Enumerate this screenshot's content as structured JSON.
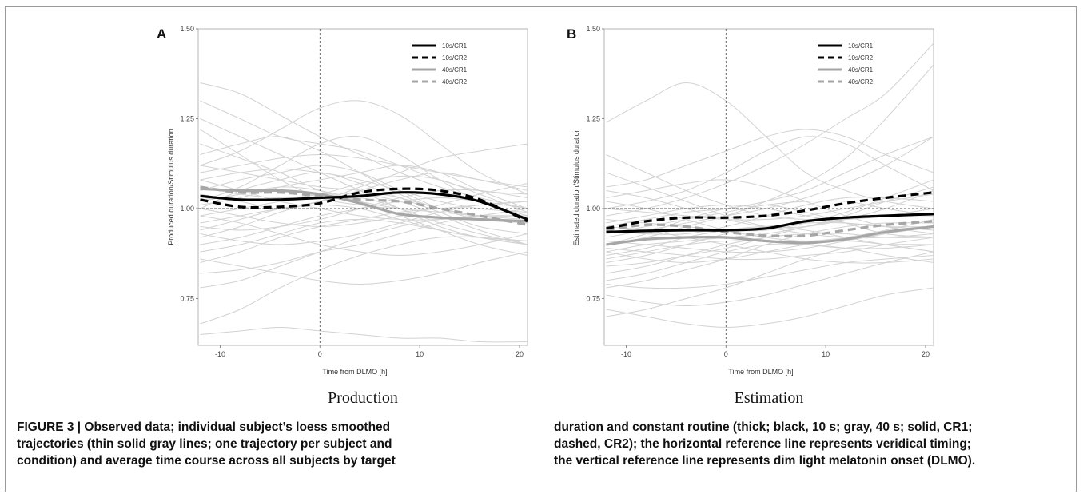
{
  "figure": {
    "caption_left": [
      "FIGURE 3 | Observed data; individual subject’s loess smoothed",
      "trajectories (thin solid gray lines; one trajectory per subject and",
      "condition) and average time course across all subjects by target"
    ],
    "caption_right": [
      "duration and constant routine (thick; black, 10 s; gray, 40 s; solid, CR1;",
      "dashed, CR2); the horizontal reference line represents veridical timing;",
      "the vertical reference line represents dim light melatonin onset (DLMO)."
    ]
  },
  "colors": {
    "black_series": "#000000",
    "gray_series": "#a6a6a6",
    "individual_lines": "#d2d2d2",
    "reference_lines": "#555555"
  },
  "chart_data": [
    {
      "type": "line",
      "panel_letter": "A",
      "subtitle": "Production",
      "xlabel": "Time from DLMO [h]",
      "ylabel": "Produced duration/Stimulus duration",
      "xlim": [
        -12.2,
        20.8
      ],
      "ylim": [
        0.62,
        1.5
      ],
      "x_ticks": [
        "-10",
        "0",
        "10",
        "20"
      ],
      "y_ticks": [
        "0.75",
        "1.00",
        "1.25",
        "1.50"
      ],
      "reference_lines": {
        "horizontal_y": 1.0,
        "vertical_x": 0
      },
      "legend_position": "top-right",
      "x": [
        -12,
        -8,
        -4,
        0,
        4,
        8,
        12,
        16,
        20.8
      ],
      "series": [
        {
          "name": "10s/CR1",
          "color": "black",
          "style": "solid",
          "values": [
            1.035,
            1.025,
            1.025,
            1.03,
            1.035,
            1.045,
            1.04,
            1.02,
            0.97
          ]
        },
        {
          "name": "10s/CR2",
          "color": "black",
          "style": "dashed",
          "values": [
            1.025,
            1.005,
            1.005,
            1.015,
            1.045,
            1.055,
            1.05,
            1.025,
            0.965
          ]
        },
        {
          "name": "40s/CR1",
          "color": "gray",
          "style": "solid",
          "values": [
            1.055,
            1.05,
            1.05,
            1.04,
            1.015,
            0.985,
            0.975,
            0.97,
            0.965
          ]
        },
        {
          "name": "40s/CR2",
          "color": "gray",
          "style": "dashed",
          "values": [
            1.06,
            1.045,
            1.045,
            1.035,
            1.025,
            1.02,
            1.0,
            0.98,
            0.955
          ]
        }
      ],
      "individual_trajectories": [
        [
          1.12,
          1.1,
          1.08,
          1.06,
          1.05,
          1.03,
          1.0,
          0.98,
          0.96
        ],
        [
          0.92,
          0.95,
          0.99,
          1.02,
          1.03,
          1.0,
          0.96,
          0.93,
          0.9
        ],
        [
          1.25,
          1.2,
          1.15,
          1.1,
          1.05,
          1.0,
          0.95,
          0.92,
          0.9
        ],
        [
          0.85,
          0.88,
          0.92,
          0.95,
          0.97,
          0.99,
          1.0,
          1.01,
          1.02
        ],
        [
          1.02,
          1.06,
          1.12,
          1.18,
          1.2,
          1.15,
          1.08,
          1.02,
          0.98
        ],
        [
          0.98,
          0.96,
          0.93,
          0.9,
          0.88,
          0.87,
          0.88,
          0.9,
          0.93
        ],
        [
          1.05,
          1.08,
          1.1,
          1.12,
          1.1,
          1.05,
          1.0,
          0.97,
          0.96
        ],
        [
          0.94,
          0.97,
          1.0,
          1.02,
          1.05,
          1.08,
          1.1,
          1.08,
          1.05
        ],
        [
          0.68,
          0.72,
          0.78,
          0.83,
          0.87,
          0.9,
          0.92,
          0.92,
          0.91
        ],
        [
          1.08,
          1.05,
          1.02,
          1.0,
          0.98,
          0.97,
          0.97,
          0.98,
          1.0
        ],
        [
          1.15,
          1.18,
          1.2,
          1.16,
          1.1,
          1.04,
          1.0,
          0.98,
          0.97
        ],
        [
          0.9,
          0.92,
          0.95,
          0.98,
          1.0,
          1.02,
          1.03,
          1.02,
          1.0
        ],
        [
          1.01,
          1.03,
          1.06,
          1.08,
          1.1,
          1.12,
          1.1,
          1.05,
          1.0
        ],
        [
          0.96,
          0.98,
          1.0,
          1.01,
          1.0,
          0.97,
          0.94,
          0.92,
          0.9
        ],
        [
          1.3,
          1.25,
          1.2,
          1.18,
          1.16,
          1.12,
          1.08,
          1.05,
          1.04
        ],
        [
          0.82,
          0.83,
          0.85,
          0.88,
          0.9,
          0.93,
          0.96,
          0.98,
          1.0
        ],
        [
          1.04,
          1.02,
          1.0,
          1.02,
          1.06,
          1.1,
          1.14,
          1.16,
          1.18
        ],
        [
          0.98,
          1.0,
          1.02,
          1.04,
          1.04,
          1.02,
          0.98,
          0.94,
          0.9
        ],
        [
          1.1,
          1.12,
          1.14,
          1.15,
          1.14,
          1.12,
          1.1,
          1.08,
          1.06
        ],
        [
          0.93,
          0.91,
          0.9,
          0.91,
          0.93,
          0.96,
          0.99,
          1.01,
          1.02
        ],
        [
          1.0,
          1.05,
          1.08,
          1.1,
          1.07,
          1.03,
          0.99,
          0.95,
          0.93
        ],
        [
          1.18,
          1.14,
          1.1,
          1.05,
          1.02,
          1.0,
          0.99,
          0.98,
          0.98
        ],
        [
          0.88,
          0.9,
          0.93,
          0.96,
          0.97,
          0.96,
          0.94,
          0.92,
          0.91
        ],
        [
          1.06,
          1.04,
          1.03,
          1.04,
          1.07,
          1.09,
          1.08,
          1.04,
          0.99
        ],
        [
          1.35,
          1.32,
          1.26,
          1.2,
          1.15,
          1.1,
          1.06,
          1.03,
          1.0
        ],
        [
          0.78,
          0.8,
          0.84,
          0.88,
          0.92,
          0.95,
          0.97,
          0.98,
          0.98
        ],
        [
          1.0,
          0.98,
          0.96,
          0.95,
          0.96,
          0.98,
          1.01,
          1.04,
          1.07
        ],
        [
          1.12,
          1.16,
          1.22,
          1.28,
          1.3,
          1.26,
          1.18,
          1.1,
          1.04
        ],
        [
          0.95,
          0.94,
          0.95,
          0.97,
          1.0,
          1.03,
          1.05,
          1.05,
          1.03
        ],
        [
          1.08,
          1.1,
          1.11,
          1.1,
          1.08,
          1.05,
          1.02,
          1.0,
          0.99
        ],
        [
          0.86,
          0.84,
          0.82,
          0.8,
          0.79,
          0.8,
          0.82,
          0.85,
          0.88
        ],
        [
          1.22,
          1.15,
          1.08,
          1.03,
          1.01,
          1.0,
          1.0,
          1.01,
          1.02
        ],
        [
          0.65,
          0.66,
          0.67,
          0.66,
          0.65,
          0.64,
          0.64,
          0.63,
          0.63
        ],
        [
          1.02,
          1.04,
          1.06,
          1.05,
          1.02,
          0.98,
          0.94,
          0.9,
          0.87
        ]
      ]
    },
    {
      "type": "line",
      "panel_letter": "B",
      "subtitle": "Estimation",
      "xlabel": "Time from DLMO [h]",
      "ylabel": "Estimated duration/Stimulus duration",
      "xlim": [
        -12.2,
        20.8
      ],
      "ylim": [
        0.62,
        1.5
      ],
      "x_ticks": [
        "-10",
        "0",
        "10",
        "20"
      ],
      "y_ticks": [
        "0.75",
        "1.00",
        "1.25",
        "1.50"
      ],
      "reference_lines": {
        "horizontal_y": 1.0,
        "vertical_x": 0
      },
      "legend_position": "top-right",
      "x": [
        -12,
        -8,
        -4,
        0,
        4,
        8,
        12,
        16,
        20.8
      ],
      "series": [
        {
          "name": "10s/CR1",
          "color": "black",
          "style": "solid",
          "values": [
            0.935,
            0.938,
            0.94,
            0.94,
            0.945,
            0.965,
            0.975,
            0.98,
            0.985
          ]
        },
        {
          "name": "10s/CR2",
          "color": "black",
          "style": "dashed",
          "values": [
            0.945,
            0.965,
            0.975,
            0.975,
            0.98,
            0.995,
            1.015,
            1.03,
            1.045
          ]
        },
        {
          "name": "40s/CR1",
          "color": "gray",
          "style": "solid",
          "values": [
            0.9,
            0.915,
            0.92,
            0.92,
            0.91,
            0.905,
            0.915,
            0.935,
            0.95
          ]
        },
        {
          "name": "40s/CR2",
          "color": "gray",
          "style": "dashed",
          "values": [
            0.94,
            0.955,
            0.95,
            0.935,
            0.925,
            0.925,
            0.94,
            0.955,
            0.965
          ]
        }
      ],
      "individual_trajectories": [
        [
          0.85,
          0.87,
          0.9,
          0.93,
          0.95,
          0.96,
          0.96,
          0.95,
          0.94
        ],
        [
          1.02,
          1.0,
          0.97,
          0.94,
          0.92,
          0.91,
          0.92,
          0.94,
          0.97
        ],
        [
          0.78,
          0.8,
          0.83,
          0.86,
          0.9,
          0.93,
          0.95,
          0.96,
          0.96
        ],
        [
          1.24,
          1.3,
          1.35,
          1.3,
          1.2,
          1.1,
          1.05,
          1.02,
          1.0
        ],
        [
          0.92,
          0.94,
          0.96,
          0.98,
          1.0,
          1.03,
          1.07,
          1.12,
          1.2
        ],
        [
          0.88,
          0.86,
          0.85,
          0.86,
          0.88,
          0.9,
          0.91,
          0.9,
          0.88
        ],
        [
          0.96,
          0.98,
          1.0,
          1.01,
          1.0,
          0.98,
          0.96,
          0.95,
          0.95
        ],
        [
          0.7,
          0.72,
          0.75,
          0.78,
          0.82,
          0.86,
          0.89,
          0.9,
          0.9
        ],
        [
          1.05,
          1.03,
          1.0,
          0.97,
          0.95,
          0.95,
          0.97,
          1.0,
          1.05
        ],
        [
          0.9,
          0.92,
          0.95,
          0.98,
          1.02,
          1.07,
          1.14,
          1.25,
          1.4
        ],
        [
          0.95,
          0.94,
          0.92,
          0.9,
          0.88,
          0.86,
          0.85,
          0.85,
          0.86
        ],
        [
          1.0,
          1.02,
          1.05,
          1.1,
          1.16,
          1.2,
          1.18,
          1.12,
          1.05
        ],
        [
          0.82,
          0.84,
          0.87,
          0.9,
          0.92,
          0.93,
          0.93,
          0.92,
          0.92
        ],
        [
          0.93,
          0.95,
          0.97,
          0.99,
          1.01,
          1.02,
          1.02,
          1.0,
          0.98
        ],
        [
          1.1,
          1.06,
          1.02,
          0.98,
          0.95,
          0.93,
          0.92,
          0.92,
          0.93
        ],
        [
          0.88,
          0.9,
          0.91,
          0.92,
          0.93,
          0.95,
          0.98,
          1.02,
          1.06
        ],
        [
          0.76,
          0.74,
          0.73,
          0.74,
          0.76,
          0.79,
          0.82,
          0.85,
          0.88
        ],
        [
          0.98,
          1.0,
          1.03,
          1.07,
          1.12,
          1.18,
          1.25,
          1.32,
          1.46
        ],
        [
          0.86,
          0.88,
          0.9,
          0.91,
          0.91,
          0.9,
          0.89,
          0.89,
          0.9
        ],
        [
          0.94,
          0.93,
          0.93,
          0.95,
          0.98,
          1.01,
          1.03,
          1.03,
          1.02
        ],
        [
          1.15,
          1.1,
          1.05,
          1.01,
          0.98,
          0.97,
          0.97,
          0.98,
          1.0
        ],
        [
          0.8,
          0.82,
          0.85,
          0.88,
          0.9,
          0.9,
          0.89,
          0.87,
          0.85
        ],
        [
          0.9,
          0.93,
          0.97,
          1.0,
          1.01,
          0.99,
          0.96,
          0.93,
          0.92
        ],
        [
          0.97,
          0.96,
          0.95,
          0.94,
          0.94,
          0.96,
          0.99,
          1.03,
          1.08
        ],
        [
          0.72,
          0.7,
          0.68,
          0.67,
          0.68,
          0.7,
          0.73,
          0.76,
          0.78
        ],
        [
          1.03,
          1.05,
          1.07,
          1.08,
          1.06,
          1.02,
          0.98,
          0.95,
          0.93
        ],
        [
          0.91,
          0.9,
          0.89,
          0.88,
          0.88,
          0.89,
          0.91,
          0.93,
          0.95
        ],
        [
          0.84,
          0.85,
          0.87,
          0.89,
          0.92,
          0.95,
          0.97,
          0.98,
          0.98
        ],
        [
          1.0,
          0.99,
          0.98,
          0.97,
          0.97,
          0.98,
          1.0,
          1.02,
          1.04
        ],
        [
          0.87,
          0.89,
          0.92,
          0.94,
          0.95,
          0.94,
          0.92,
          0.9,
          0.88
        ],
        [
          0.95,
          0.97,
          0.99,
          1.0,
          1.02,
          1.05,
          1.1,
          1.15,
          1.2
        ],
        [
          0.79,
          0.78,
          0.78,
          0.79,
          0.81,
          0.83,
          0.85,
          0.86,
          0.87
        ],
        [
          1.06,
          1.08,
          1.12,
          1.16,
          1.2,
          1.22,
          1.2,
          1.15,
          1.1
        ],
        [
          0.89,
          0.88,
          0.87,
          0.86,
          0.86,
          0.87,
          0.88,
          0.9,
          0.92
        ]
      ]
    }
  ]
}
